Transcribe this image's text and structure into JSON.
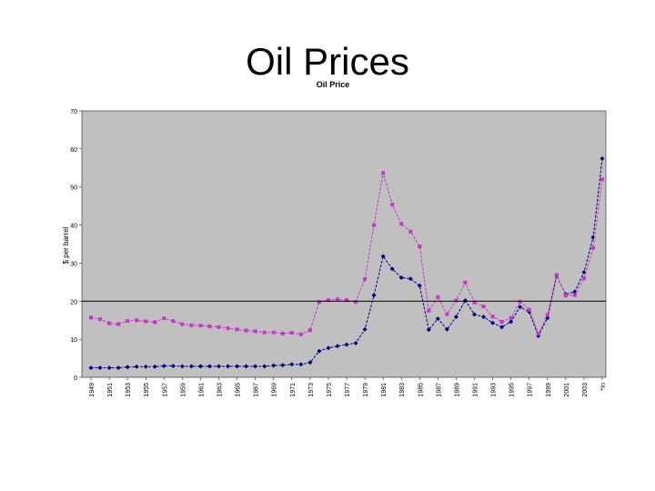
{
  "slide": {
    "title": "Oil Prices"
  },
  "chart_data": {
    "type": "line",
    "title": "Oil Price",
    "ylabel": "$ per barrel",
    "xlabel": "",
    "ylim": [
      0,
      70
    ],
    "yticks": [
      0,
      10,
      20,
      30,
      40,
      50,
      60,
      70
    ],
    "grid": false,
    "reference_line": 20,
    "plot_background": "#c0c0c0",
    "x_tick_labels": [
      "1949",
      "1951",
      "1953",
      "1955",
      "1957",
      "1959",
      "1961",
      "1963",
      "1965",
      "1967",
      "1969",
      "1971",
      "1973",
      "1975",
      "1977",
      "1979",
      "1981",
      "1983",
      "1985",
      "1987",
      "1989",
      "1991",
      "1993",
      "1995",
      "1997",
      "1999",
      "2001",
      "2003",
      "*In"
    ],
    "x": [
      1949,
      1950,
      1951,
      1952,
      1953,
      1954,
      1955,
      1956,
      1957,
      1958,
      1959,
      1960,
      1961,
      1962,
      1963,
      1964,
      1965,
      1966,
      1967,
      1968,
      1969,
      1970,
      1971,
      1972,
      1973,
      1974,
      1975,
      1976,
      1977,
      1978,
      1979,
      1980,
      1981,
      1982,
      1983,
      1984,
      1985,
      1986,
      1987,
      1988,
      1989,
      1990,
      1991,
      1992,
      1993,
      1994,
      1995,
      1996,
      1997,
      1998,
      1999,
      2000,
      2001,
      2002,
      2003,
      2004,
      2005
    ],
    "series": [
      {
        "color": "#000080",
        "marker": "diamond",
        "values": [
          2.5,
          2.5,
          2.5,
          2.5,
          2.7,
          2.8,
          2.8,
          2.8,
          3.0,
          3.0,
          2.9,
          2.9,
          2.9,
          2.9,
          2.9,
          2.9,
          2.9,
          2.9,
          2.9,
          2.9,
          3.1,
          3.2,
          3.4,
          3.4,
          3.9,
          6.9,
          7.7,
          8.2,
          8.6,
          9.0,
          12.6,
          21.6,
          31.8,
          28.5,
          26.2,
          25.9,
          24.1,
          12.5,
          15.4,
          12.6,
          15.9,
          20.2,
          16.5,
          15.9,
          14.3,
          13.2,
          14.6,
          18.5,
          17.2,
          10.9,
          15.6,
          26.7,
          21.8,
          22.5,
          27.6,
          36.8,
          57.5
        ]
      },
      {
        "color": "#cc33cc",
        "marker": "square",
        "values": [
          15.7,
          15.3,
          14.2,
          14.0,
          14.8,
          15.0,
          14.7,
          14.5,
          15.5,
          14.8,
          14.0,
          13.7,
          13.6,
          13.4,
          13.2,
          12.9,
          12.6,
          12.3,
          12.1,
          11.8,
          11.8,
          11.5,
          11.7,
          11.3,
          12.4,
          19.8,
          20.3,
          20.5,
          20.3,
          19.8,
          25.8,
          40.0,
          53.7,
          45.4,
          40.3,
          38.3,
          34.4,
          17.5,
          21.1,
          16.6,
          20.2,
          24.9,
          19.7,
          18.6,
          16.0,
          14.6,
          15.6,
          19.9,
          17.8,
          11.4,
          16.4,
          26.9,
          21.5,
          21.6,
          26.0,
          34.0,
          52.0
        ]
      }
    ]
  }
}
